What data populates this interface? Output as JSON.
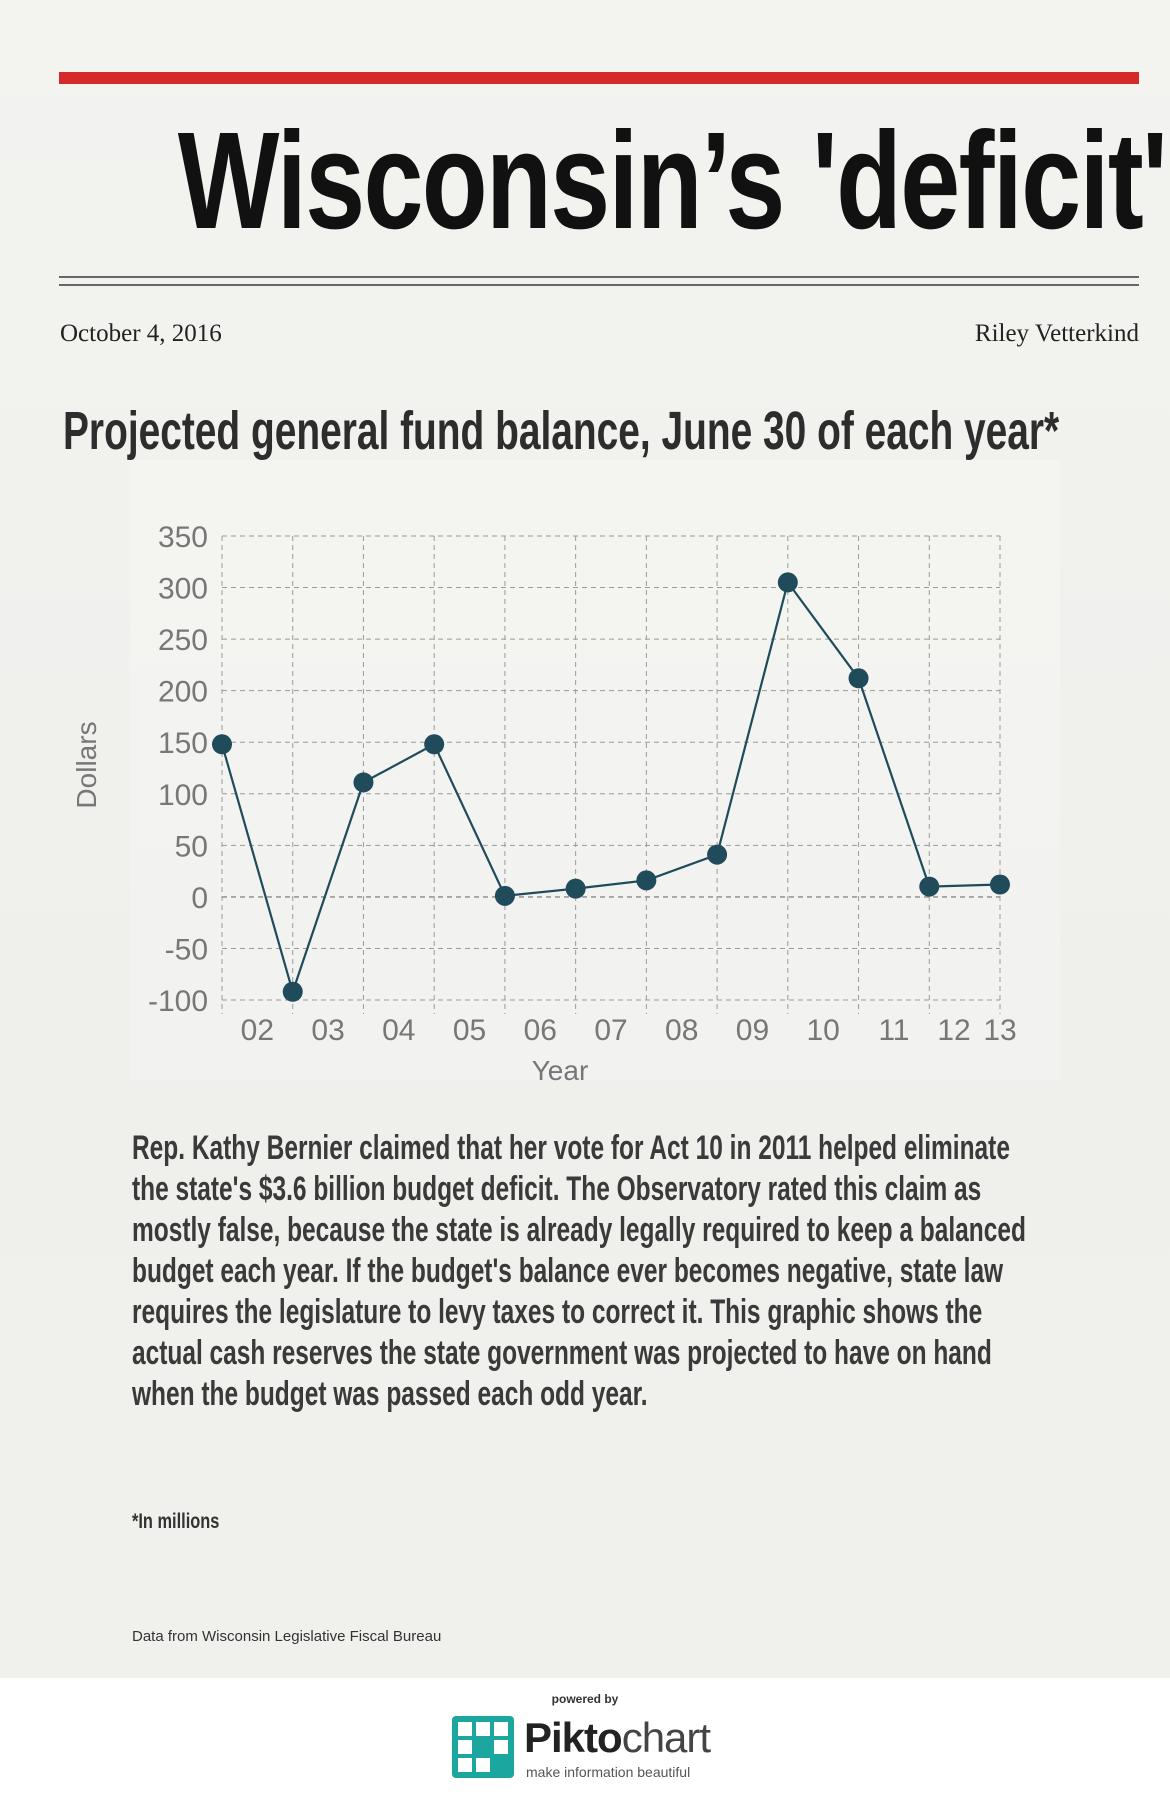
{
  "header": {
    "title": "Wisconsin’s 'deficit'",
    "date": "October 4, 2016",
    "author": "Riley Vetterkind"
  },
  "colors": {
    "accent_rule": "#d62a2a",
    "series": "#1f4b5a",
    "grid": "#9a9a9a"
  },
  "chart_data": {
    "type": "line",
    "title": "Projected general fund balance, June 30 of each year*",
    "xlabel": "Year",
    "ylabel": "Dollars",
    "ylim": [
      -100,
      350
    ],
    "yticks": [
      350,
      300,
      250,
      200,
      150,
      100,
      50,
      0,
      -50,
      -100
    ],
    "categories": [
      "02",
      "03",
      "04",
      "05",
      "06",
      "07",
      "08",
      "09",
      "10",
      "11",
      "12",
      "13"
    ],
    "series": [
      {
        "name": "General fund balance",
        "values": [
          148,
          -92,
          111,
          148,
          1,
          8,
          16,
          41,
          305,
          212,
          10,
          12
        ]
      }
    ],
    "grid": true
  },
  "body": {
    "paragraph": "Rep. Kathy Bernier claimed that her vote for Act 10 in 2011 helped eliminate the state's $3.6 billion budget deficit. The Observatory rated this claim as mostly false, because the state is already legally required to keep a balanced budget each year. If the budget's balance ever becomes negative, state law requires the legislature to levy taxes to correct it. This graphic shows the actual cash reserves the state government was projected to have on hand when the budget was passed each odd year.",
    "footnote": "*In millions",
    "source": "Data from Wisconsin Legislative Fiscal Bureau"
  },
  "footer": {
    "powered_by": "powered by",
    "brand_bold": "Pikto",
    "brand_light": "chart",
    "tagline": "make information beautiful"
  }
}
